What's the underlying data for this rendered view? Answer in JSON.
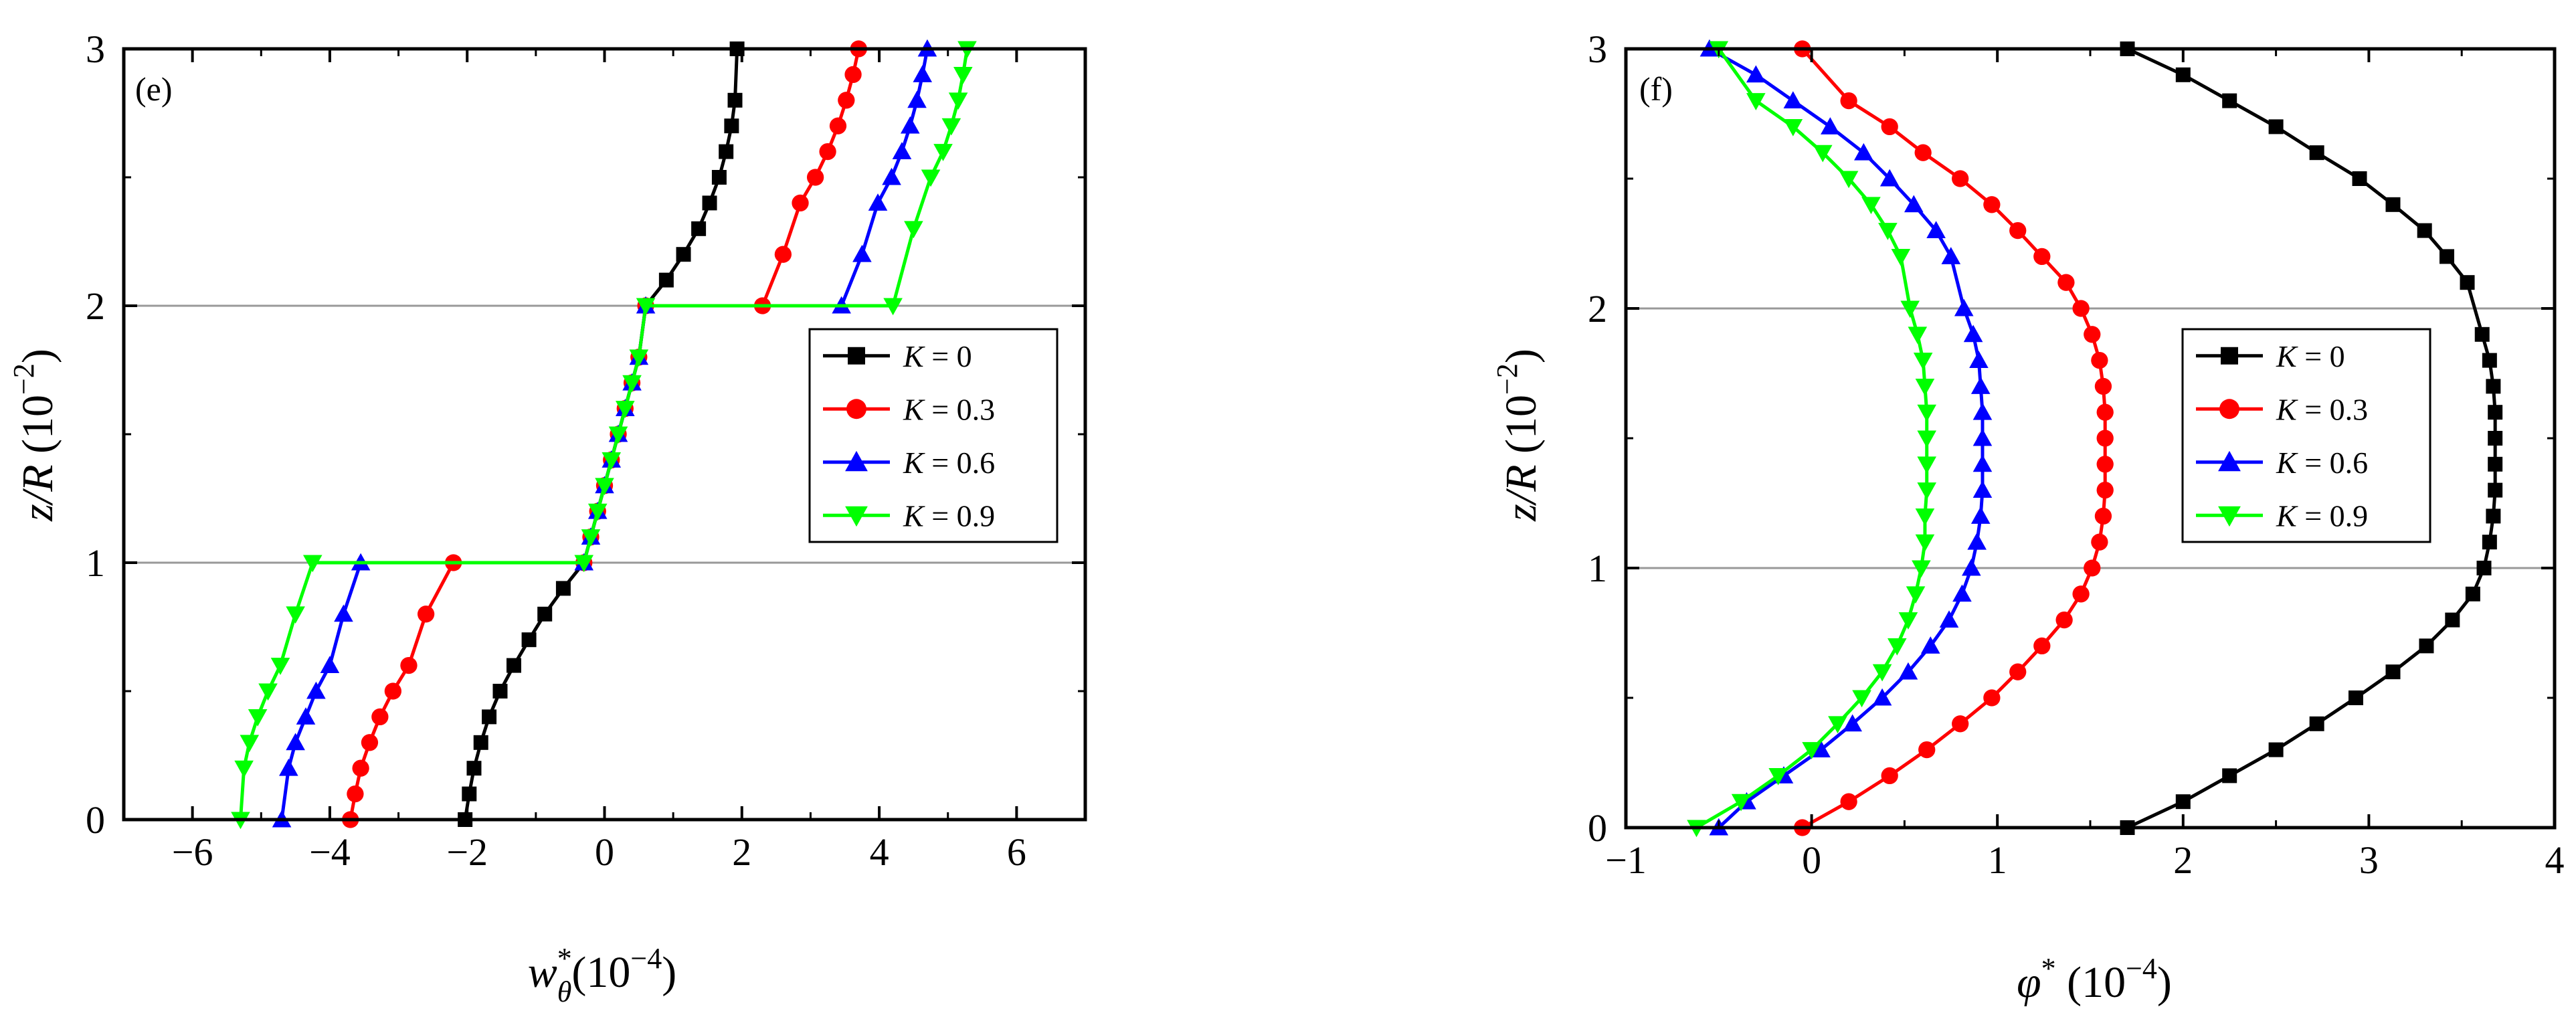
{
  "chart_data": [
    {
      "panel": "(e)",
      "type": "line",
      "xlabel": {
        "base": "w",
        "sup": "*",
        "sub": "θ",
        "rest": "(10",
        "exp": "−4",
        "close": ")"
      },
      "ylabel": {
        "italic": "z/R",
        "rest": " (10",
        "exp": "−2",
        "close": ")"
      },
      "xlim": [
        -7,
        7
      ],
      "ylim": [
        0,
        3
      ],
      "xticks": [
        -6,
        -4,
        -2,
        0,
        2,
        4,
        6
      ],
      "xtick_labels": [
        "−6",
        "−4",
        "−2",
        "0",
        "2",
        "4",
        "6"
      ],
      "yticks": [
        0,
        1,
        2,
        3
      ],
      "ytick_labels": [
        "0",
        "1",
        "2",
        "3"
      ],
      "hlines": [
        1,
        2
      ],
      "legend_position": "center-right",
      "series": [
        {
          "name": "K = 0",
          "symbol": "K",
          "value": " = 0",
          "marker": "square",
          "color": "#000000",
          "x": [
            -2.03,
            -1.97,
            -1.9,
            -1.8,
            -1.68,
            -1.52,
            -1.32,
            -1.1,
            -0.87,
            -0.6,
            -0.3,
            -0.3,
            -0.2,
            -0.1,
            0,
            0.1,
            0.2,
            0.3,
            0.4,
            0.5,
            0.6,
            0.6,
            0.9,
            1.15,
            1.37,
            1.53,
            1.67,
            1.77,
            1.85,
            1.9,
            1.93
          ],
          "y": [
            0,
            0.1,
            0.2,
            0.3,
            0.4,
            0.5,
            0.6,
            0.7,
            0.8,
            0.9,
            1.0,
            1.0,
            1.1,
            1.2,
            1.3,
            1.4,
            1.5,
            1.6,
            1.7,
            1.8,
            2.0,
            2.0,
            2.1,
            2.2,
            2.3,
            2.4,
            2.5,
            2.6,
            2.7,
            2.8,
            3.0
          ]
        },
        {
          "name": "K = 0.3",
          "symbol": "K",
          "value": " = 0.3",
          "marker": "circle",
          "color": "#ff0000",
          "x": [
            -3.7,
            -3.63,
            -3.55,
            -3.42,
            -3.27,
            -3.08,
            -2.85,
            -2.6,
            -2.2,
            -0.3,
            -0.2,
            -0.1,
            0,
            0.1,
            0.2,
            0.3,
            0.4,
            0.5,
            0.6,
            2.3,
            2.6,
            2.85,
            3.07,
            3.25,
            3.4,
            3.52,
            3.62,
            3.7
          ],
          "y": [
            0,
            0.1,
            0.2,
            0.3,
            0.4,
            0.5,
            0.6,
            0.8,
            1.0,
            1.0,
            1.1,
            1.2,
            1.3,
            1.4,
            1.5,
            1.6,
            1.7,
            1.8,
            2.0,
            2.0,
            2.2,
            2.4,
            2.5,
            2.6,
            2.7,
            2.8,
            2.9,
            3.0
          ]
        },
        {
          "name": "K = 0.6",
          "symbol": "K",
          "value": " = 0.6",
          "marker": "triangle-up",
          "color": "#0000ff",
          "x": [
            -4.7,
            -4.6,
            -4.5,
            -4.35,
            -4.2,
            -4.0,
            -3.8,
            -3.55,
            -0.3,
            -0.2,
            -0.1,
            0,
            0.1,
            0.2,
            0.3,
            0.4,
            0.5,
            0.6,
            3.45,
            3.75,
            3.98,
            4.18,
            4.33,
            4.45,
            4.55,
            4.63,
            4.7
          ],
          "y": [
            0,
            0.2,
            0.3,
            0.4,
            0.5,
            0.6,
            0.8,
            1.0,
            1.0,
            1.1,
            1.2,
            1.3,
            1.4,
            1.5,
            1.6,
            1.7,
            1.8,
            2.0,
            2.0,
            2.2,
            2.4,
            2.5,
            2.6,
            2.7,
            2.8,
            2.9,
            3.0
          ]
        },
        {
          "name": "K = 0.9",
          "symbol": "K",
          "value": " = 0.9",
          "marker": "triangle-down",
          "color": "#00ff00",
          "x": [
            -5.3,
            -5.25,
            -5.17,
            -5.05,
            -4.9,
            -4.72,
            -4.5,
            -4.25,
            -0.3,
            -0.2,
            -0.1,
            0,
            0.1,
            0.2,
            0.3,
            0.4,
            0.5,
            0.6,
            4.2,
            4.5,
            4.75,
            4.93,
            5.05,
            5.15,
            5.22,
            5.28
          ],
          "y": [
            0,
            0.2,
            0.3,
            0.4,
            0.5,
            0.6,
            0.8,
            1.0,
            1.0,
            1.1,
            1.2,
            1.3,
            1.4,
            1.5,
            1.6,
            1.7,
            1.8,
            2.0,
            2.0,
            2.3,
            2.5,
            2.6,
            2.7,
            2.8,
            2.9,
            3.0
          ]
        }
      ]
    },
    {
      "panel": "(f)",
      "type": "line",
      "xlabel": {
        "base": "φ",
        "sup": "*",
        "sub": "",
        "rest": " (10",
        "exp": "−4",
        "close": ")"
      },
      "ylabel": {
        "italic": "z/R",
        "rest": " (10",
        "exp": "−2",
        "close": ")"
      },
      "xlim": [
        -1,
        4
      ],
      "ylim": [
        0,
        3
      ],
      "xticks": [
        -1,
        0,
        1,
        2,
        3,
        4
      ],
      "xtick_labels": [
        "−1",
        "0",
        "1",
        "2",
        "3",
        "4"
      ],
      "yticks": [
        0,
        1,
        2,
        3
      ],
      "ytick_labels": [
        "0",
        "1",
        "2",
        "3"
      ],
      "hlines": [
        1,
        2
      ],
      "legend_position": "center-right",
      "series": [
        {
          "name": "K = 0",
          "symbol": "K",
          "value": " = 0",
          "marker": "square",
          "color": "#000000",
          "x": [
            1.7,
            2.0,
            2.25,
            2.5,
            2.72,
            2.93,
            3.13,
            3.31,
            3.45,
            3.56,
            3.62,
            3.65,
            3.67,
            3.68,
            3.68,
            3.68,
            3.68,
            3.67,
            3.65,
            3.61,
            3.53,
            3.42,
            3.3,
            3.13,
            2.95,
            2.72,
            2.5,
            2.25,
            2.0,
            1.7
          ],
          "y": [
            0,
            0.1,
            0.2,
            0.3,
            0.4,
            0.5,
            0.6,
            0.7,
            0.8,
            0.9,
            1.0,
            1.1,
            1.2,
            1.3,
            1.4,
            1.5,
            1.6,
            1.7,
            1.8,
            1.9,
            2.1,
            2.2,
            2.3,
            2.4,
            2.5,
            2.6,
            2.7,
            2.8,
            2.9,
            3.0
          ]
        },
        {
          "name": "K = 0.3",
          "symbol": "K",
          "value": " = 0.3",
          "marker": "circle",
          "color": "#ff0000",
          "x": [
            -0.05,
            0.2,
            0.42,
            0.62,
            0.8,
            0.97,
            1.11,
            1.24,
            1.36,
            1.45,
            1.51,
            1.55,
            1.57,
            1.58,
            1.58,
            1.58,
            1.58,
            1.57,
            1.55,
            1.51,
            1.45,
            1.37,
            1.24,
            1.11,
            0.97,
            0.8,
            0.6,
            0.42,
            0.2,
            -0.05
          ],
          "y": [
            0,
            0.1,
            0.2,
            0.3,
            0.4,
            0.5,
            0.6,
            0.7,
            0.8,
            0.9,
            1.0,
            1.1,
            1.2,
            1.3,
            1.4,
            1.5,
            1.6,
            1.7,
            1.8,
            1.9,
            2.0,
            2.1,
            2.2,
            2.3,
            2.4,
            2.5,
            2.6,
            2.7,
            2.8,
            3.0
          ]
        },
        {
          "name": "K = 0.6",
          "symbol": "K",
          "value": " = 0.6",
          "marker": "triangle-up",
          "color": "#0000ff",
          "x": [
            -0.5,
            -0.35,
            -0.15,
            0.05,
            0.22,
            0.38,
            0.52,
            0.64,
            0.74,
            0.81,
            0.86,
            0.89,
            0.91,
            0.92,
            0.92,
            0.92,
            0.92,
            0.91,
            0.9,
            0.87,
            0.82,
            0.75,
            0.67,
            0.55,
            0.42,
            0.28,
            0.1,
            -0.1,
            -0.3,
            -0.55
          ],
          "y": [
            0,
            0.1,
            0.2,
            0.3,
            0.4,
            0.5,
            0.6,
            0.7,
            0.8,
            0.9,
            1.0,
            1.1,
            1.2,
            1.3,
            1.4,
            1.5,
            1.6,
            1.7,
            1.8,
            1.9,
            2.0,
            2.2,
            2.3,
            2.4,
            2.5,
            2.6,
            2.7,
            2.8,
            2.9,
            3.0
          ]
        },
        {
          "name": "K = 0.9",
          "symbol": "K",
          "value": " = 0.9",
          "marker": "triangle-down",
          "color": "#00ff00",
          "x": [
            -0.62,
            -0.38,
            -0.18,
            0.0,
            0.14,
            0.27,
            0.38,
            0.46,
            0.52,
            0.56,
            0.59,
            0.61,
            0.61,
            0.62,
            0.62,
            0.62,
            0.62,
            0.61,
            0.6,
            0.57,
            0.53,
            0.48,
            0.41,
            0.32,
            0.2,
            0.06,
            -0.1,
            -0.3,
            -0.5
          ],
          "y": [
            0,
            0.1,
            0.2,
            0.3,
            0.4,
            0.5,
            0.6,
            0.7,
            0.8,
            0.9,
            1.0,
            1.1,
            1.2,
            1.3,
            1.4,
            1.5,
            1.6,
            1.7,
            1.8,
            1.9,
            2.0,
            2.2,
            2.3,
            2.4,
            2.5,
            2.6,
            2.7,
            2.8,
            3.0
          ]
        }
      ]
    }
  ]
}
